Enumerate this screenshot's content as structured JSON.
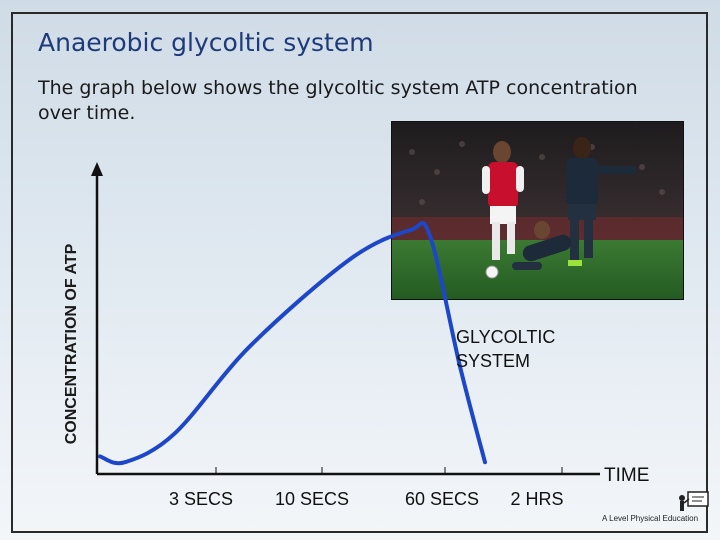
{
  "slide": {
    "title": "Anaerobic glycoltic system",
    "subtitle": "The graph below shows the glycoltic system ATP concentration over time.",
    "logo_text": "A Level Physical Education"
  },
  "colors": {
    "title": "#1f3a7a",
    "curve": "#1d47c8",
    "axes": "#111111",
    "shirt_red": "#c8102e",
    "kit_dark": "#1c2a3a",
    "pitch": "#2e6b2a"
  },
  "photo": {
    "description_icon": "football-players-photo"
  },
  "chart_data": {
    "type": "line",
    "ylabel": "CONCENTRATION OF ATP",
    "xlabel": "TIME",
    "x_ticks": [
      "3 SECS",
      "10 SECS",
      "60 SECS",
      "2 HRS"
    ],
    "series": [
      {
        "name": "GLYCOLTIC SYSTEM",
        "points": [
          {
            "t": 0.0,
            "y": 0.04
          },
          {
            "t": 0.05,
            "y": 0.02
          },
          {
            "t": 0.15,
            "y": 0.12
          },
          {
            "t": 0.3,
            "y": 0.42
          },
          {
            "t": 0.5,
            "y": 0.72
          },
          {
            "t": 0.62,
            "y": 0.82
          },
          {
            "t": 0.66,
            "y": 0.8
          },
          {
            "t": 0.72,
            "y": 0.35
          },
          {
            "t": 0.77,
            "y": 0.02
          }
        ]
      }
    ],
    "series_label_lines": [
      "GLYCOLTIC",
      "SYSTEM"
    ],
    "grid": false,
    "legend": "none"
  }
}
